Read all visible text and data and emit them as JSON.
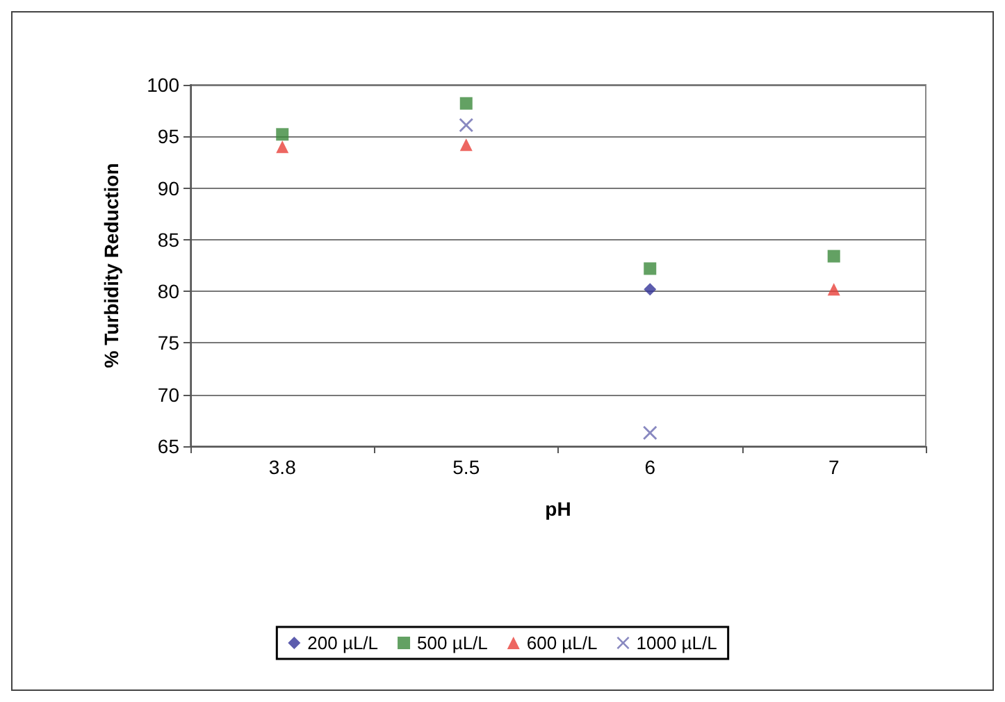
{
  "chart_data": {
    "type": "scatter",
    "xlabel": "pH",
    "ylabel": "% Turbidity Reduction",
    "categories": [
      "3.8",
      "5.5",
      "6",
      "7"
    ],
    "series": [
      {
        "name": "200 µL/L",
        "color": "#333399",
        "marker": "diamond",
        "values": [
          null,
          null,
          80.2,
          null
        ]
      },
      {
        "name": "500 µL/L",
        "color": "#3c8a3c",
        "marker": "square",
        "values": [
          95.2,
          98.2,
          82.2,
          83.4
        ]
      },
      {
        "name": "600 µL/L",
        "color": "#e8403a",
        "marker": "triangle",
        "values": [
          94.0,
          94.2,
          null,
          80.2
        ]
      },
      {
        "name": "1000 µL/L",
        "color": "#6a6ab0",
        "marker": "cross",
        "values": [
          null,
          96.1,
          66.3,
          null
        ]
      }
    ],
    "ylim": [
      65,
      100
    ],
    "yticks": [
      65,
      70,
      75,
      80,
      85,
      90,
      95,
      100
    ],
    "grid": "y",
    "legend": "bottom"
  }
}
